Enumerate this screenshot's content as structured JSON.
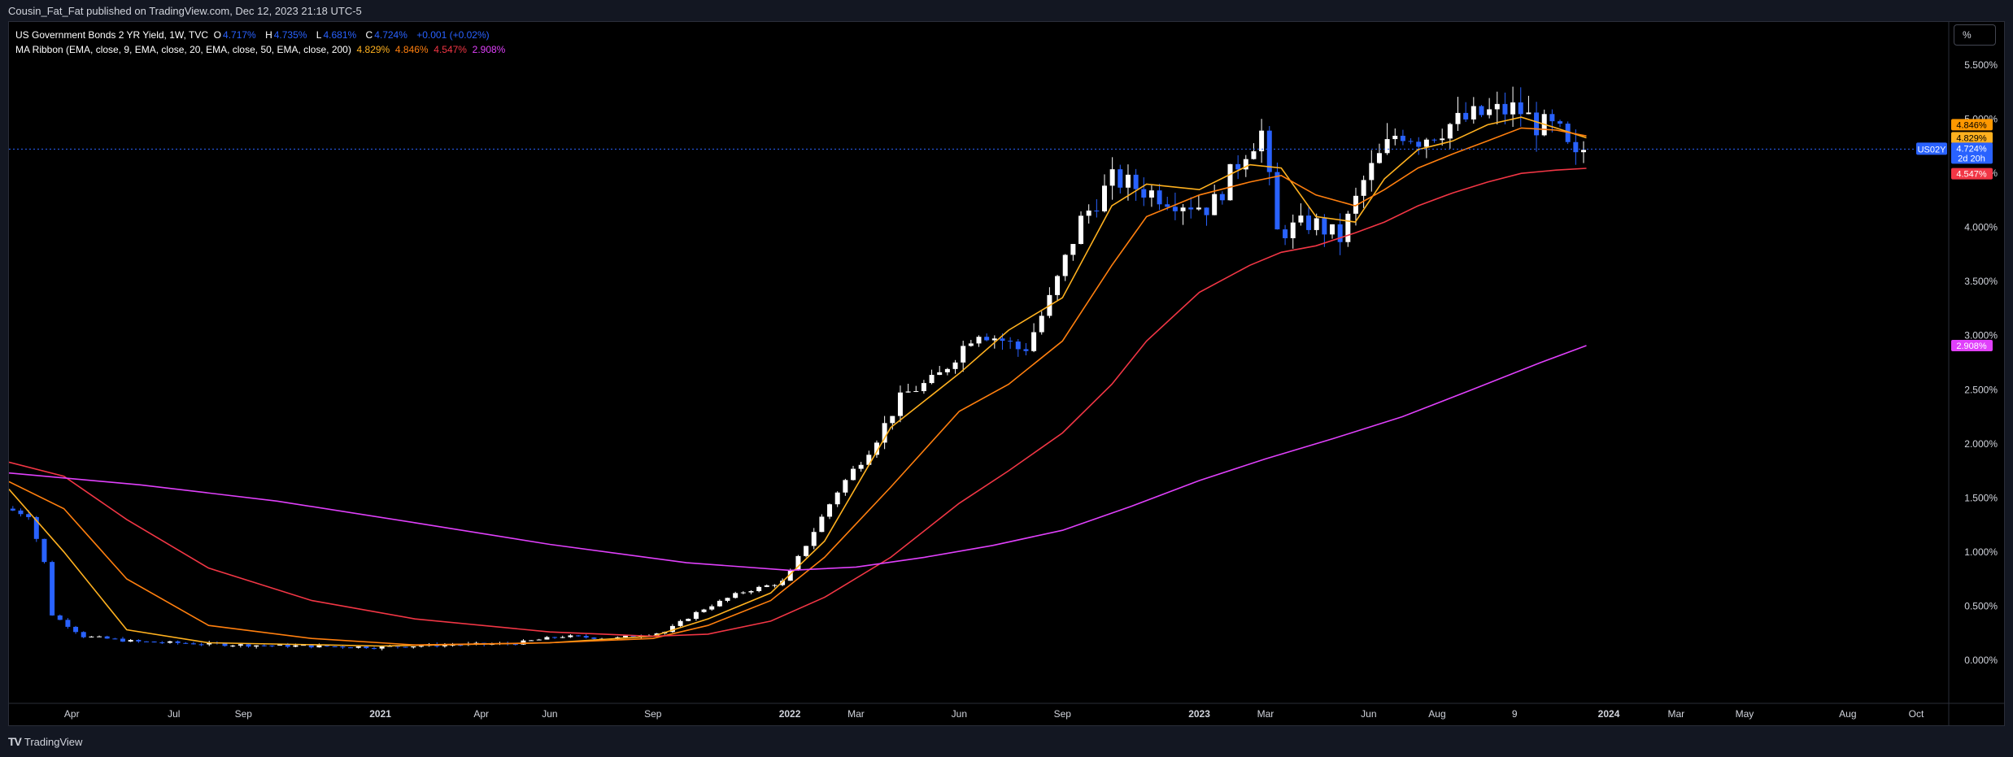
{
  "header": {
    "published_text": "Cousin_Fat_Fat published on TradingView.com, Dec 12, 2023 21:18 UTC-5"
  },
  "legend": {
    "symbol_line": "US Government Bonds 2 YR Yield, 1W, TVC",
    "ohlc": [
      {
        "label": "O",
        "value": "4.717%"
      },
      {
        "label": "H",
        "value": "4.735%"
      },
      {
        "label": "L",
        "value": "4.681%"
      },
      {
        "label": "C",
        "value": "4.724%"
      }
    ],
    "change": "+0.001 (+0.02%)",
    "ma_title": "MA Ribbon (EMA, close, 9, EMA, close, 20, EMA, close, 50, EMA, close, 200)",
    "ma_values": [
      {
        "value": "4.829%",
        "color": "#ffb11f"
      },
      {
        "value": "4.846%",
        "color": "#ff7f0e"
      },
      {
        "value": "4.547%",
        "color": "#f23645"
      },
      {
        "value": "2.908%",
        "color": "#e040fb"
      }
    ]
  },
  "toolbar": {
    "scale_button": "%"
  },
  "footer": {
    "brand": "TradingView",
    "brand_mark": "TV"
  },
  "price_tags": [
    {
      "text": "4.846%",
      "value": 4.846,
      "bg": "#ff9800",
      "fg": "#000000"
    },
    {
      "text": "4.829%",
      "value": 4.829,
      "bg": "#ffb11f",
      "fg": "#000000"
    },
    {
      "text": "4.547%",
      "value": 4.547,
      "bg": "#f23645",
      "fg": "#ffffff"
    },
    {
      "text": "2.908%",
      "value": 2.908,
      "bg": "#e040fb",
      "fg": "#ffffff"
    }
  ],
  "current_price": {
    "symbol": "US02Y",
    "text": "4.724%",
    "countdown": "2d 20h",
    "value": 4.724,
    "bg": "#2962ff"
  },
  "chart_data": {
    "type": "candlestick",
    "title": "US Government Bonds 2 YR Yield",
    "timeframe": "1W",
    "y_axis": {
      "ticks": [
        "0.000%",
        "0.500%",
        "1.000%",
        "1.500%",
        "2.000%",
        "2.500%",
        "3.000%",
        "3.500%",
        "4.000%",
        "4.500%",
        "5.000%",
        "5.500%"
      ],
      "tick_values": [
        0,
        0.5,
        1,
        1.5,
        2,
        2.5,
        3,
        3.5,
        4,
        4.5,
        5,
        5.5
      ],
      "range": [
        -0.4,
        5.9
      ]
    },
    "x_axis": {
      "labels": [
        "Apr",
        "Jul",
        "Sep",
        "2021",
        "Apr",
        "Jun",
        "Sep",
        "2022",
        "Mar",
        "Jun",
        "Sep",
        "2023",
        "Mar",
        "Jun",
        "Aug",
        "9",
        "2024",
        "Mar",
        "May",
        "Aug",
        "Oct"
      ],
      "label_dates": [
        "2020-04-01",
        "2020-07-01",
        "2020-09-01",
        "2021-01-01",
        "2021-04-01",
        "2021-06-01",
        "2021-09-01",
        "2022-01-01",
        "2022-03-01",
        "2022-06-01",
        "2022-09-01",
        "2023-01-01",
        "2023-03-01",
        "2023-06-01",
        "2023-08-01",
        "2023-10-09",
        "2024-01-01",
        "2024-03-01",
        "2024-05-01",
        "2024-08-01",
        "2024-10-01"
      ],
      "range": [
        "2020-02-05",
        "2024-10-30"
      ]
    },
    "ema_series": [
      {
        "name": "EMA 9",
        "color": "#ffb11f",
        "points": [
          [
            "2020-02-05",
            1.58
          ],
          [
            "2020-03-25",
            1.0
          ],
          [
            "2020-05-20",
            0.28
          ],
          [
            "2020-08-01",
            0.16
          ],
          [
            "2021-01-01",
            0.13
          ],
          [
            "2021-06-01",
            0.16
          ],
          [
            "2021-09-01",
            0.22
          ],
          [
            "2021-10-20",
            0.38
          ],
          [
            "2021-12-15",
            0.62
          ],
          [
            "2022-02-01",
            1.1
          ],
          [
            "2022-04-01",
            2.15
          ],
          [
            "2022-06-01",
            2.65
          ],
          [
            "2022-07-15",
            3.05
          ],
          [
            "2022-09-01",
            3.35
          ],
          [
            "2022-10-15",
            4.2
          ],
          [
            "2022-11-15",
            4.4
          ],
          [
            "2023-01-01",
            4.35
          ],
          [
            "2023-02-15",
            4.58
          ],
          [
            "2023-03-15",
            4.55
          ],
          [
            "2023-04-15",
            4.1
          ],
          [
            "2023-05-20",
            4.05
          ],
          [
            "2023-06-15",
            4.45
          ],
          [
            "2023-07-15",
            4.72
          ],
          [
            "2023-08-15",
            4.8
          ],
          [
            "2023-09-15",
            4.95
          ],
          [
            "2023-10-15",
            5.02
          ],
          [
            "2023-11-15",
            4.92
          ],
          [
            "2023-12-12",
            4.829
          ]
        ]
      },
      {
        "name": "EMA 20",
        "color": "#ff7f0e",
        "points": [
          [
            "2020-02-05",
            1.65
          ],
          [
            "2020-03-25",
            1.4
          ],
          [
            "2020-05-20",
            0.75
          ],
          [
            "2020-08-01",
            0.32
          ],
          [
            "2020-11-01",
            0.2
          ],
          [
            "2021-02-01",
            0.14
          ],
          [
            "2021-06-01",
            0.16
          ],
          [
            "2021-09-01",
            0.2
          ],
          [
            "2021-10-20",
            0.32
          ],
          [
            "2021-12-15",
            0.55
          ],
          [
            "2022-02-01",
            0.95
          ],
          [
            "2022-04-01",
            1.6
          ],
          [
            "2022-06-01",
            2.3
          ],
          [
            "2022-07-15",
            2.55
          ],
          [
            "2022-09-01",
            2.95
          ],
          [
            "2022-10-15",
            3.65
          ],
          [
            "2022-11-15",
            4.1
          ],
          [
            "2023-01-01",
            4.3
          ],
          [
            "2023-02-15",
            4.42
          ],
          [
            "2023-03-15",
            4.48
          ],
          [
            "2023-04-15",
            4.3
          ],
          [
            "2023-05-20",
            4.2
          ],
          [
            "2023-06-15",
            4.35
          ],
          [
            "2023-07-15",
            4.55
          ],
          [
            "2023-08-15",
            4.68
          ],
          [
            "2023-09-15",
            4.8
          ],
          [
            "2023-10-15",
            4.92
          ],
          [
            "2023-11-15",
            4.9
          ],
          [
            "2023-12-12",
            4.846
          ]
        ]
      },
      {
        "name": "EMA 50",
        "color": "#f23645",
        "points": [
          [
            "2020-02-05",
            1.83
          ],
          [
            "2020-03-25",
            1.7
          ],
          [
            "2020-05-20",
            1.3
          ],
          [
            "2020-08-01",
            0.85
          ],
          [
            "2020-11-01",
            0.55
          ],
          [
            "2021-02-01",
            0.38
          ],
          [
            "2021-06-01",
            0.26
          ],
          [
            "2021-09-01",
            0.22
          ],
          [
            "2021-10-20",
            0.24
          ],
          [
            "2021-12-15",
            0.36
          ],
          [
            "2022-02-01",
            0.58
          ],
          [
            "2022-04-01",
            0.95
          ],
          [
            "2022-06-01",
            1.45
          ],
          [
            "2022-07-15",
            1.75
          ],
          [
            "2022-09-01",
            2.1
          ],
          [
            "2022-10-15",
            2.55
          ],
          [
            "2022-11-15",
            2.95
          ],
          [
            "2023-01-01",
            3.4
          ],
          [
            "2023-02-15",
            3.65
          ],
          [
            "2023-03-15",
            3.77
          ],
          [
            "2023-04-15",
            3.83
          ],
          [
            "2023-05-20",
            3.95
          ],
          [
            "2023-06-15",
            4.05
          ],
          [
            "2023-07-15",
            4.2
          ],
          [
            "2023-08-15",
            4.32
          ],
          [
            "2023-09-15",
            4.42
          ],
          [
            "2023-10-15",
            4.5
          ],
          [
            "2023-11-15",
            4.53
          ],
          [
            "2023-12-12",
            4.547
          ]
        ]
      },
      {
        "name": "EMA 200",
        "color": "#e040fb",
        "points": [
          [
            "2020-02-05",
            1.73
          ],
          [
            "2020-06-01",
            1.62
          ],
          [
            "2020-10-01",
            1.47
          ],
          [
            "2021-02-01",
            1.27
          ],
          [
            "2021-06-01",
            1.07
          ],
          [
            "2021-10-01",
            0.9
          ],
          [
            "2022-01-01",
            0.83
          ],
          [
            "2022-03-01",
            0.86
          ],
          [
            "2022-05-01",
            0.95
          ],
          [
            "2022-07-01",
            1.06
          ],
          [
            "2022-09-01",
            1.2
          ],
          [
            "2022-11-01",
            1.42
          ],
          [
            "2023-01-01",
            1.66
          ],
          [
            "2023-03-01",
            1.86
          ],
          [
            "2023-05-01",
            2.05
          ],
          [
            "2023-07-01",
            2.25
          ],
          [
            "2023-09-01",
            2.5
          ],
          [
            "2023-11-01",
            2.75
          ],
          [
            "2023-12-12",
            2.908
          ]
        ]
      }
    ],
    "price_path": [
      [
        "2020-02-05",
        1.4
      ],
      [
        "2020-02-26",
        1.35
      ],
      [
        "2020-03-11",
        0.9
      ],
      [
        "2020-03-18",
        0.42
      ],
      [
        "2020-04-15",
        0.22
      ],
      [
        "2020-06-01",
        0.17
      ],
      [
        "2020-09-01",
        0.14
      ],
      [
        "2021-01-01",
        0.12
      ],
      [
        "2021-03-01",
        0.14
      ],
      [
        "2021-05-01",
        0.15
      ],
      [
        "2021-06-15",
        0.22
      ],
      [
        "2021-08-01",
        0.2
      ],
      [
        "2021-09-15",
        0.26
      ],
      [
        "2021-10-15",
        0.45
      ],
      [
        "2021-11-20",
        0.62
      ],
      [
        "2021-12-31",
        0.73
      ],
      [
        "2022-02-15",
        1.55
      ],
      [
        "2022-03-20",
        2.0
      ],
      [
        "2022-04-15",
        2.45
      ],
      [
        "2022-05-15",
        2.6
      ],
      [
        "2022-06-20",
        3.05
      ],
      [
        "2022-07-15",
        2.95
      ],
      [
        "2022-08-01",
        2.85
      ],
      [
        "2022-08-25",
        3.35
      ],
      [
        "2022-09-20",
        4.05
      ],
      [
        "2022-10-20",
        4.45
      ],
      [
        "2022-11-15",
        4.35
      ],
      [
        "2022-12-15",
        4.25
      ],
      [
        "2023-01-15",
        4.18
      ],
      [
        "2023-02-15",
        4.72
      ],
      [
        "2023-03-01",
        4.88
      ],
      [
        "2023-03-15",
        3.95
      ],
      [
        "2023-04-15",
        4.05
      ],
      [
        "2023-05-10",
        3.9
      ],
      [
        "2023-06-01",
        4.45
      ],
      [
        "2023-07-01",
        4.9
      ],
      [
        "2023-07-20",
        4.82
      ],
      [
        "2023-08-15",
        4.95
      ],
      [
        "2023-09-15",
        5.05
      ],
      [
        "2023-10-15",
        5.1
      ],
      [
        "2023-11-01",
        4.95
      ],
      [
        "2023-11-20",
        4.9
      ],
      [
        "2023-12-05",
        4.6
      ],
      [
        "2023-12-12",
        4.724
      ]
    ]
  }
}
